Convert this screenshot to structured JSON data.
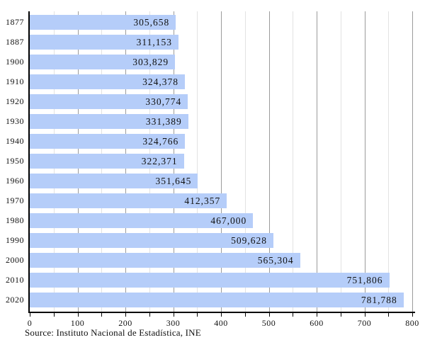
{
  "chart_data": {
    "type": "bar",
    "orientation": "horizontal",
    "title": "",
    "xlabel": "",
    "ylabel": "",
    "categories": [
      "1877",
      "1887",
      "1900",
      "1910",
      "1920",
      "1930",
      "1940",
      "1950",
      "1960",
      "1970",
      "1980",
      "1990",
      "2000",
      "2010",
      "2020"
    ],
    "values": [
      305658,
      311153,
      303829,
      324378,
      330774,
      331389,
      324766,
      322371,
      351645,
      412357,
      467000,
      509628,
      565304,
      751806,
      781788
    ],
    "value_labels": [
      "305,658",
      "311,153",
      "303,829",
      "324,378",
      "330,774",
      "331,389",
      "324,766",
      "322,371",
      "351,645",
      "412,357",
      "467,000",
      "509,628",
      "565,304",
      "751,806",
      "781,788"
    ],
    "xlim": [
      0,
      800000
    ],
    "x_minor_tick_step": 50000,
    "x_major_tick_step": 100000,
    "x_tick_labels": [
      "0",
      "100",
      "200",
      "300",
      "400",
      "500",
      "600",
      "700",
      "800"
    ],
    "x_axis_unit": "thousands",
    "grid": "vertical gridlines every 50 (minor light) and 100 (major darker), drawn behind bars",
    "legend": "none",
    "colors": {
      "bar": "#b5cdf9",
      "grid_minor": "#e2e2e2",
      "grid_major": "#9b9b9b",
      "axis": "#000000",
      "text": "#111111"
    }
  },
  "source_note": "Source: Instituto Nacional de Estadística, INE"
}
